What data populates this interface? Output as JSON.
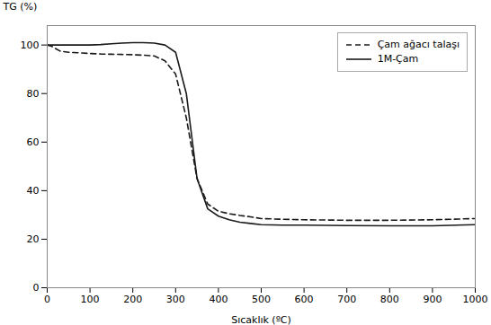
{
  "chart_data": {
    "type": "line",
    "xlabel": "Sıcaklık (ºC)",
    "ylabel": "TG (%)",
    "x": [
      0,
      10,
      20,
      30,
      50,
      75,
      100,
      125,
      150,
      175,
      200,
      225,
      250,
      275,
      300,
      325,
      350,
      375,
      400,
      425,
      450,
      475,
      500,
      550,
      600,
      700,
      800,
      900,
      1000
    ],
    "series": [
      {
        "name": "Çam ağacı talaşı",
        "color": "#1a1a1a",
        "line_style": "dashed",
        "values": [
          100,
          99.5,
          98.5,
          97.5,
          97.0,
          96.8,
          96.5,
          96.3,
          96.2,
          96.1,
          96.0,
          95.8,
          95.5,
          93.5,
          88.0,
          70.0,
          45.0,
          34.5,
          31.5,
          30.5,
          29.8,
          29.2,
          28.5,
          28.2,
          28.0,
          27.8,
          27.8,
          28.0,
          28.5
        ]
      },
      {
        "name": "1M-Çam",
        "color": "#1a1a1a",
        "line_style": "solid",
        "values": [
          100,
          100,
          100,
          100,
          100,
          100,
          100,
          100.2,
          100.5,
          100.8,
          101.0,
          101.0,
          100.8,
          100.0,
          97.0,
          80.0,
          45.0,
          32.5,
          29.5,
          28.0,
          27.0,
          26.5,
          26.0,
          25.8,
          25.8,
          25.6,
          25.5,
          25.5,
          26.0
        ]
      }
    ],
    "xlim": [
      0,
      1000
    ],
    "ylim": [
      0,
      108
    ],
    "xticks": [
      0,
      100,
      200,
      300,
      400,
      500,
      600,
      700,
      800,
      900,
      1000
    ],
    "yticks": [
      0,
      20,
      40,
      60,
      80,
      100
    ],
    "grid": false,
    "legend": "upper right"
  }
}
